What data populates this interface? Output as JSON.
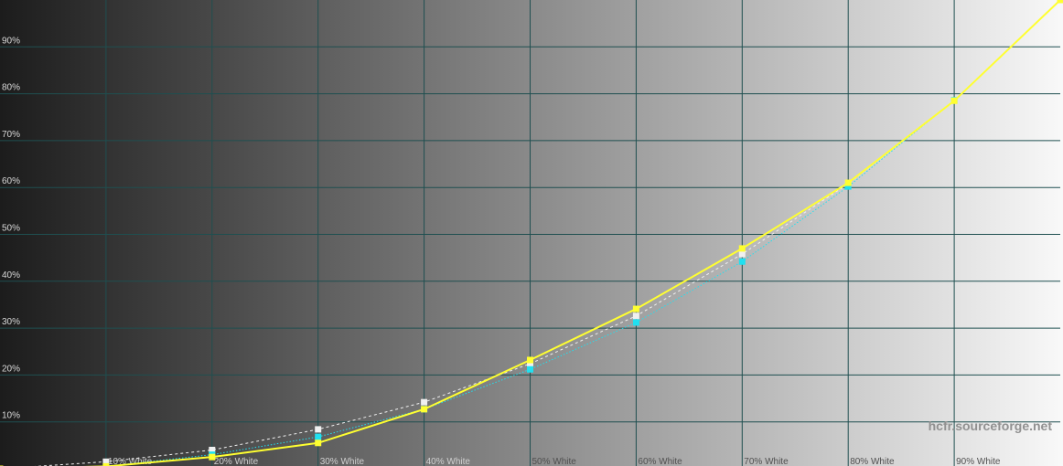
{
  "chart_data": {
    "type": "line",
    "watermark": "hcfr.sourceforge.net",
    "x": [
      0,
      10,
      20,
      30,
      40,
      50,
      60,
      70,
      80,
      90,
      100
    ],
    "xlim": [
      0,
      100
    ],
    "xticks": [
      {
        "value": 10,
        "label": "10% White"
      },
      {
        "value": 20,
        "label": "20% White"
      },
      {
        "value": 30,
        "label": "30% White"
      },
      {
        "value": 40,
        "label": "40% White"
      },
      {
        "value": 50,
        "label": "50% White"
      },
      {
        "value": 60,
        "label": "60% White"
      },
      {
        "value": 70,
        "label": "70% White"
      },
      {
        "value": 80,
        "label": "80% White"
      },
      {
        "value": 90,
        "label": "90% White"
      }
    ],
    "ylim": [
      0,
      100
    ],
    "yticks": [
      {
        "value": 10,
        "label": "10%"
      },
      {
        "value": 20,
        "label": "20%"
      },
      {
        "value": 30,
        "label": "30%"
      },
      {
        "value": 40,
        "label": "40%"
      },
      {
        "value": 50,
        "label": "50%"
      },
      {
        "value": 60,
        "label": "60%"
      },
      {
        "value": 70,
        "label": "70%"
      },
      {
        "value": 80,
        "label": "80%"
      },
      {
        "value": 90,
        "label": "90%"
      }
    ],
    "grid": true,
    "series": [
      {
        "color": "#f0f0f0",
        "style": "dashed",
        "values": [
          0,
          1.5,
          4,
          8.4,
          14.2,
          22.4,
          32.6,
          45.8,
          60.8,
          78.6,
          100
        ]
      },
      {
        "color": "#20e0f0",
        "style": "dotted",
        "values": [
          0,
          0.5,
          3,
          6.8,
          12.7,
          21.2,
          31.2,
          44.2,
          60.2,
          78.6,
          100
        ]
      },
      {
        "color": "#ffff30",
        "style": "solid",
        "values": [
          0,
          0.5,
          2.5,
          5.5,
          12.7,
          23.2,
          34.1,
          47,
          61,
          78.5,
          100
        ]
      }
    ]
  }
}
